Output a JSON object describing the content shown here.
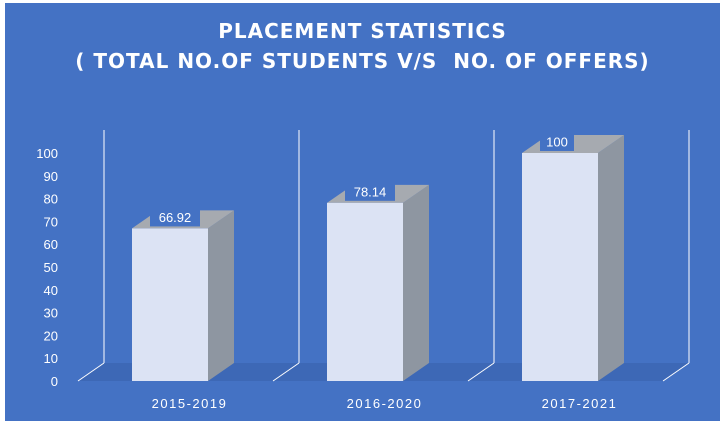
{
  "chart_data": {
    "type": "bar",
    "title_lines": [
      "PLACEMENT STATISTICS",
      "( TOTAL NO.OF STUDENTS V/S  NO. OF OFFERS)"
    ],
    "categories": [
      "2015-2019",
      "2016-2020",
      "2017-2021"
    ],
    "values": [
      66.92,
      78.14,
      100
    ],
    "data_labels": [
      "66.92",
      "78.14",
      "100"
    ],
    "yticks": [
      "0",
      "10",
      "20",
      "30",
      "40",
      "50",
      "60",
      "70",
      "80",
      "90",
      "100"
    ],
    "ylim": [
      0,
      100
    ],
    "ytick_step": 10,
    "grid": "vertical category dividers",
    "legend": "none",
    "colors": {
      "background": "#4472C4",
      "bar_front": "#DCE3F4",
      "bar_side": "#8E96A1",
      "bar_top": "#A6AAB0",
      "floor": "#3D68B6",
      "label_box": "#4472C4",
      "text": "#ffffff"
    }
  }
}
